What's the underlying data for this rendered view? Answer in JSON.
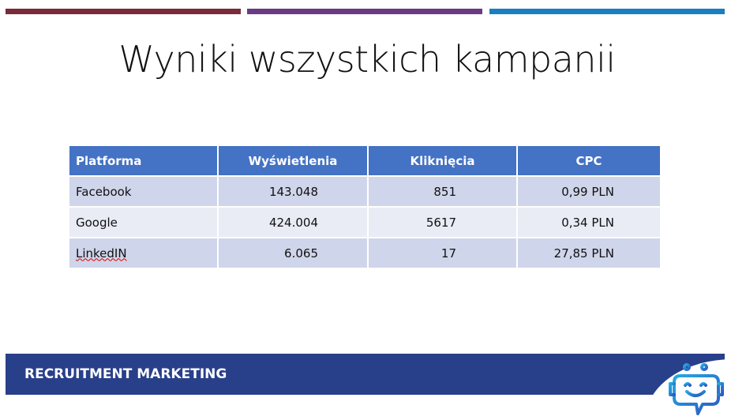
{
  "colors": {
    "stripe1": "#7b2a3b",
    "stripe2": "#6b3a84",
    "stripe3": "#1a7fc1",
    "header": "#4472c4",
    "footer": "#283f8a"
  },
  "title": "Wyniki wszystkich kampanii",
  "table": {
    "headers": [
      "Platforma",
      "Wyświetlenia",
      "Kliknięcia",
      "CPC"
    ],
    "rows": [
      [
        "Facebook",
        "143.048",
        "851",
        "0,99 PLN"
      ],
      [
        "Google",
        "424.004",
        "5617",
        "0,34 PLN"
      ],
      [
        "LinkedIN",
        "6.065",
        "17",
        "27,85 PLN"
      ]
    ]
  },
  "footer": {
    "text": "RECRUITMENT MARKETING",
    "logo_icon": "robot-chat-icon"
  }
}
